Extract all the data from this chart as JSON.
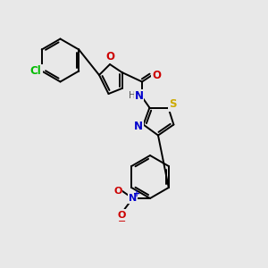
{
  "background_color": "#e8e8e8",
  "figsize": [
    3.0,
    3.0
  ],
  "dpi": 100,
  "lw": 1.4,
  "atom_colors": {
    "Cl": "#00bb00",
    "O": "#cc0000",
    "N": "#0000cc",
    "S": "#ccaa00",
    "H": "#555555",
    "C": "#000000"
  }
}
